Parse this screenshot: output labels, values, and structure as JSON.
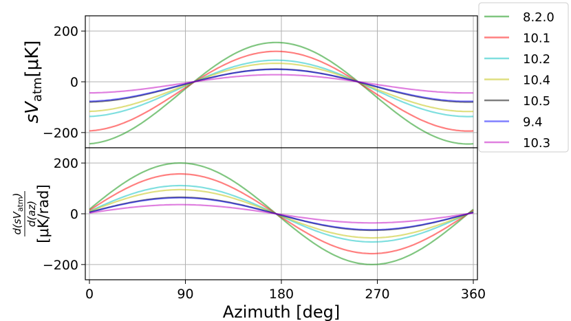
{
  "chart_data": [
    {
      "type": "line",
      "panel": "top",
      "ylabel_main": "sV",
      "ylabel_sub": "atm",
      "ylabel_unit": "[μK]",
      "xlim": [
        0,
        360
      ],
      "ylim": [
        -260,
        260
      ],
      "yticks": [
        200,
        0,
        -200
      ],
      "ytick_labels": [
        "200",
        "0",
        "−200"
      ],
      "grid": true,
      "series": [
        {
          "name": "8.2.0",
          "color": "#2ca02c",
          "amplitude": 200,
          "offset": -45,
          "zero_deg": 100,
          "width": 2.2,
          "opacity": 0.6
        },
        {
          "name": "10.1",
          "color": "#ff0000",
          "amplitude": 157,
          "offset": -37,
          "zero_deg": 100,
          "width": 2.2,
          "opacity": 0.5
        },
        {
          "name": "10.2",
          "color": "#00bfbf",
          "amplitude": 111,
          "offset": -26,
          "zero_deg": 100,
          "width": 2.2,
          "opacity": 0.5
        },
        {
          "name": "10.4",
          "color": "#bfbf00",
          "amplitude": 95,
          "offset": -22,
          "zero_deg": 100,
          "width": 2.2,
          "opacity": 0.5
        },
        {
          "name": "10.5",
          "color": "#000000",
          "amplitude": 65,
          "offset": -15,
          "zero_deg": 100,
          "width": 2.2,
          "opacity": 0.5
        },
        {
          "name": "9.4",
          "color": "#0000ff",
          "amplitude": 63,
          "offset": -14,
          "zero_deg": 100,
          "width": 2.2,
          "opacity": 0.5
        },
        {
          "name": "10.3",
          "color": "#bf00bf",
          "amplitude": 36,
          "offset": -8,
          "zero_deg": 100,
          "width": 2.2,
          "opacity": 0.5
        }
      ]
    },
    {
      "type": "line",
      "panel": "bottom",
      "ylabel_num": "d(sV",
      "ylabel_num_sub": "atm",
      "ylabel_num_end": ")",
      "ylabel_den": "d(az)",
      "ylabel_unit": "[μK/rad]",
      "xlabel": "Azimuth [deg]",
      "xlim": [
        0,
        360
      ],
      "ylim": [
        -260,
        260
      ],
      "xticks": [
        0,
        90,
        180,
        270,
        360
      ],
      "xtick_labels": [
        "0",
        "90",
        "180",
        "270",
        "360"
      ],
      "yticks": [
        200,
        0,
        -200
      ],
      "ytick_labels": [
        "200",
        "0",
        "−200"
      ],
      "grid": true,
      "series": [
        {
          "name": "8.2.0",
          "color": "#2ca02c",
          "amplitude": 200,
          "zero_deg": 175,
          "width": 2.2,
          "opacity": 0.6
        },
        {
          "name": "10.1",
          "color": "#ff0000",
          "amplitude": 157,
          "zero_deg": 175,
          "width": 2.2,
          "opacity": 0.5
        },
        {
          "name": "10.2",
          "color": "#00bfbf",
          "amplitude": 111,
          "zero_deg": 175,
          "width": 2.2,
          "opacity": 0.5
        },
        {
          "name": "10.4",
          "color": "#bfbf00",
          "amplitude": 95,
          "zero_deg": 175,
          "width": 2.2,
          "opacity": 0.5
        },
        {
          "name": "10.5",
          "color": "#000000",
          "amplitude": 65,
          "zero_deg": 175,
          "width": 2.2,
          "opacity": 0.5
        },
        {
          "name": "9.4",
          "color": "#0000ff",
          "amplitude": 63,
          "zero_deg": 175,
          "width": 2.2,
          "opacity": 0.5
        },
        {
          "name": "10.3",
          "color": "#bf00bf",
          "amplitude": 36,
          "zero_deg": 175,
          "width": 2.2,
          "opacity": 0.5
        }
      ]
    }
  ],
  "legend": {
    "placement": "right-top-outside",
    "entries": [
      "8.2.0",
      "10.1",
      "10.2",
      "10.4",
      "10.5",
      "9.4",
      "10.3"
    ],
    "colors": [
      "#2ca02c",
      "#ff0000",
      "#00bfbf",
      "#bfbf00",
      "#000000",
      "#0000ff",
      "#bf00bf"
    ]
  }
}
